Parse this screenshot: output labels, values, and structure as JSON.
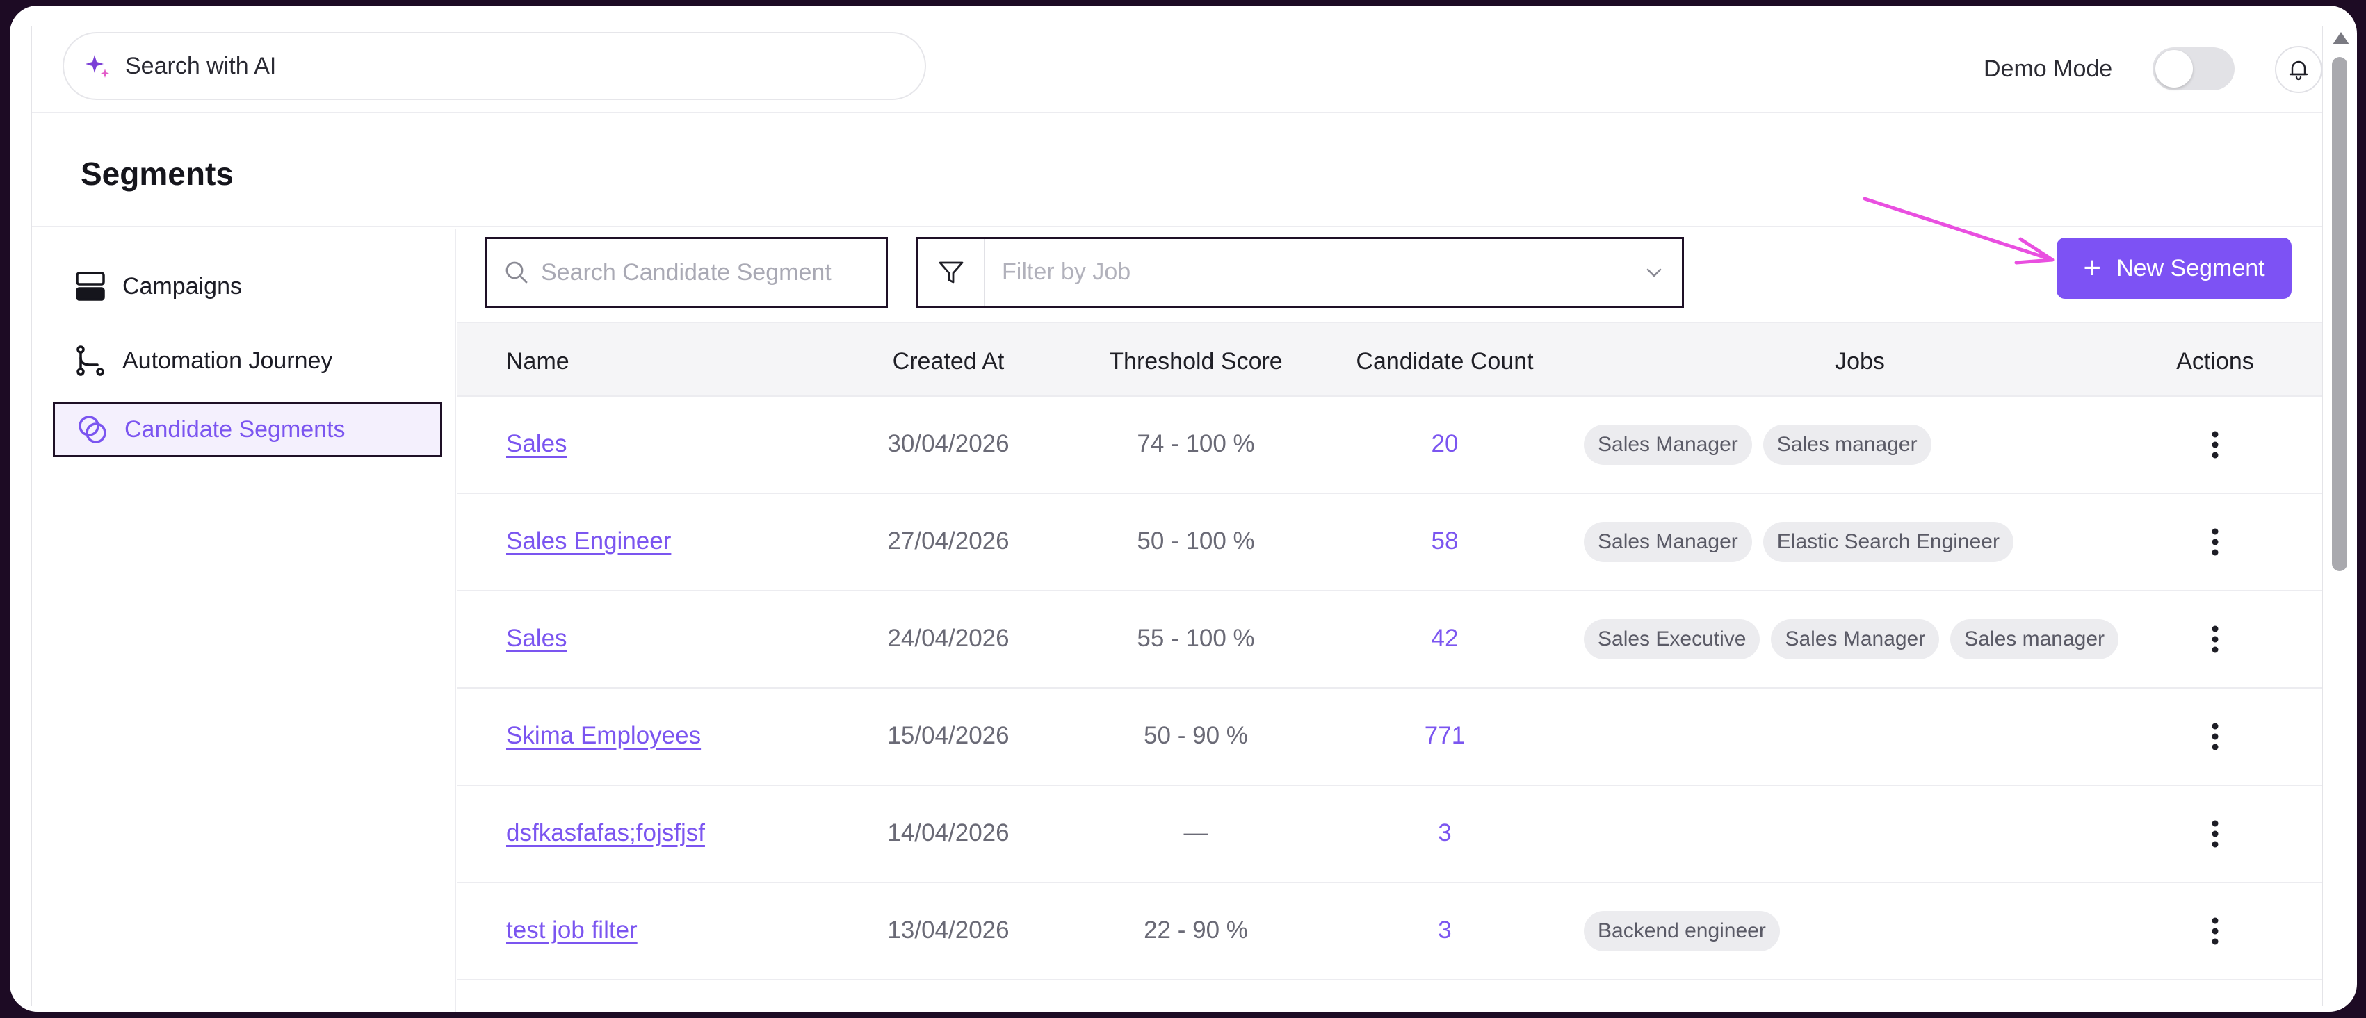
{
  "topbar": {
    "search_label": "Search with AI",
    "demo_mode_label": "Demo Mode",
    "demo_mode_on": false
  },
  "page": {
    "title": "Segments"
  },
  "sidebar": {
    "items": [
      {
        "label": "Campaigns",
        "icon": "campaigns-icon",
        "active": false
      },
      {
        "label": "Automation Journey",
        "icon": "journey-icon",
        "active": false
      },
      {
        "label": "Candidate Segments",
        "icon": "segments-icon",
        "active": true
      }
    ]
  },
  "toolbar": {
    "search_placeholder": "Search Candidate Segment",
    "filter_placeholder": "Filter by Job",
    "new_segment_label": "New Segment"
  },
  "table": {
    "headers": [
      "Name",
      "Created At",
      "Threshold Score",
      "Candidate Count",
      "Jobs",
      "Actions"
    ],
    "rows": [
      {
        "name": "Sales",
        "created_at": "30/04/2026",
        "threshold": "74 - 100 %",
        "count": "20",
        "jobs": [
          "Sales Manager",
          "Sales manager"
        ]
      },
      {
        "name": "Sales Engineer",
        "created_at": "27/04/2026",
        "threshold": "50 - 100 %",
        "count": "58",
        "jobs": [
          "Sales Manager",
          "Elastic Search Engineer"
        ]
      },
      {
        "name": "Sales",
        "created_at": "24/04/2026",
        "threshold": "55 - 100 %",
        "count": "42",
        "jobs": [
          "Sales Executive",
          "Sales Manager",
          "Sales manager"
        ]
      },
      {
        "name": "Skima Employees",
        "created_at": "15/04/2026",
        "threshold": "50 - 90 %",
        "count": "771",
        "jobs": []
      },
      {
        "name": "dsfkasfafas;fojsfjsf",
        "created_at": "14/04/2026",
        "threshold": "—",
        "count": "3",
        "jobs": []
      },
      {
        "name": "test job filter",
        "created_at": "13/04/2026",
        "threshold": "22 - 90 %",
        "count": "3",
        "jobs": [
          "Backend engineer"
        ]
      }
    ]
  },
  "colors": {
    "accent": "#7d52f4",
    "annotation_arrow": "#e94fe0",
    "frame": "#1d0b24"
  }
}
